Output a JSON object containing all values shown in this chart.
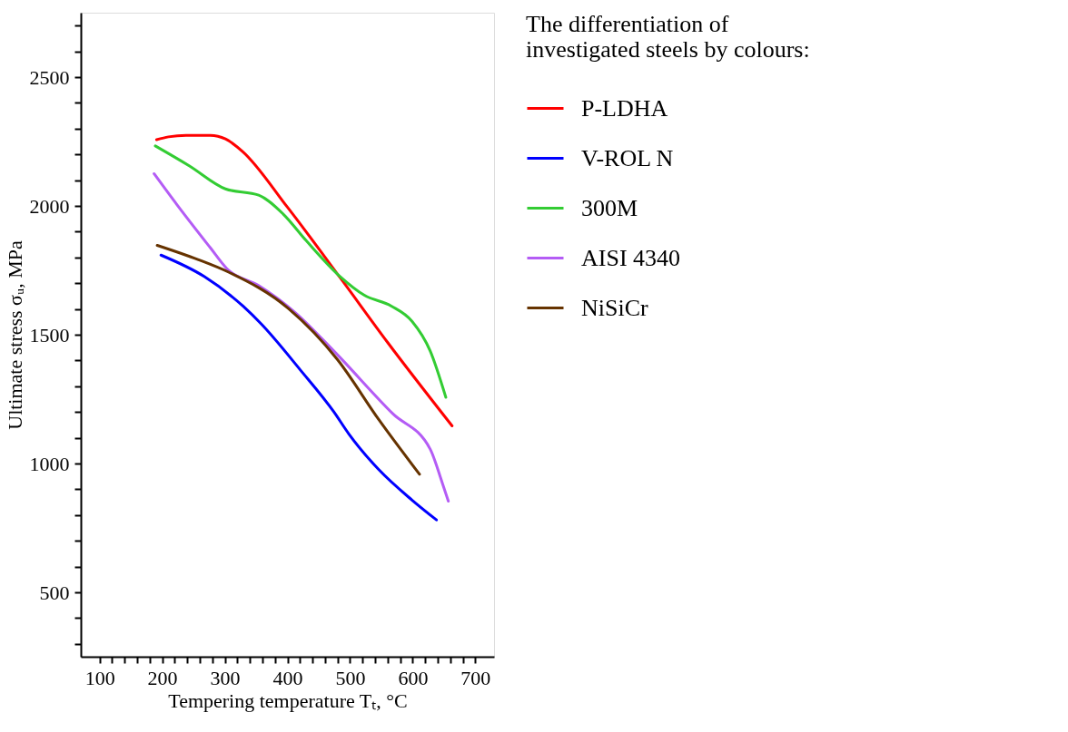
{
  "chart_data": {
    "type": "line",
    "xlabel": "Tempering temperature Tₜ, °C",
    "ylabel": "Ultimate stress σᵤ, MPa",
    "legend_title": "The differentiation of investigated steels by colours:",
    "legend": "right",
    "grid": false,
    "marker": "none",
    "line_style": "solid",
    "xlim": [
      70,
      730
    ],
    "ylim": [
      250,
      2750
    ],
    "xticks": [
      100,
      {
        "value": 120,
        "label": null
      },
      {
        "value": 140,
        "label": null
      },
      {
        "value": 160,
        "label": null
      },
      {
        "value": 180,
        "label": null
      },
      200,
      {
        "value": 220,
        "label": null
      },
      {
        "value": 240,
        "label": null
      },
      {
        "value": 260,
        "label": null
      },
      {
        "value": 280,
        "label": null
      },
      300,
      {
        "value": 320,
        "label": null
      },
      {
        "value": 340,
        "label": null
      },
      {
        "value": 360,
        "label": null
      },
      {
        "value": 380,
        "label": null
      },
      400,
      {
        "value": 420,
        "label": null
      },
      {
        "value": 440,
        "label": null
      },
      {
        "value": 460,
        "label": null
      },
      {
        "value": 480,
        "label": null
      },
      500,
      {
        "value": 520,
        "label": null
      },
      {
        "value": 540,
        "label": null
      },
      {
        "value": 560,
        "label": null
      },
      {
        "value": 580,
        "label": null
      },
      600,
      {
        "value": 620,
        "label": null
      },
      {
        "value": 640,
        "label": null
      },
      {
        "value": 660,
        "label": null
      },
      {
        "value": 680,
        "label": null
      },
      700
    ],
    "yticks": [
      {
        "value": 300,
        "label": null
      },
      {
        "value": 400,
        "label": null
      },
      500,
      {
        "value": 600,
        "label": null
      },
      {
        "value": 700,
        "label": null
      },
      {
        "value": 800,
        "label": null
      },
      {
        "value": 900,
        "label": null
      },
      1000,
      {
        "value": 1100,
        "label": null
      },
      {
        "value": 1200,
        "label": null
      },
      {
        "value": 1300,
        "label": null
      },
      {
        "value": 1400,
        "label": null
      },
      1500,
      {
        "value": 1600,
        "label": null
      },
      {
        "value": 1700,
        "label": null
      },
      {
        "value": 1800,
        "label": null
      },
      {
        "value": 1900,
        "label": null
      },
      2000,
      {
        "value": 2100,
        "label": null
      },
      {
        "value": 2200,
        "label": null
      },
      {
        "value": 2300,
        "label": null
      },
      {
        "value": 2400,
        "label": null
      },
      2500,
      {
        "value": 2600,
        "label": null
      },
      {
        "value": 2700,
        "label": null
      }
    ],
    "series": [
      {
        "name": "P-LDHA",
        "color": "#ff0000",
        "x": [
          191,
          210,
          238,
          277,
          301,
          328,
          400,
          484,
          560,
          663
        ],
        "values": [
          2257,
          2268,
          2274,
          2274,
          2260,
          2212,
          1995,
          1722,
          1470,
          1146
        ]
      },
      {
        "name": "V-ROL  N",
        "color": "#0000ff",
        "x": [
          198,
          267,
          329,
          358,
          420,
          474,
          498,
          546,
          599,
          638
        ],
        "values": [
          1809,
          1726,
          1611,
          1542,
          1365,
          1201,
          1115,
          976,
          858,
          781
        ]
      },
      {
        "name": "300M",
        "color": "#33cc33",
        "x": [
          189,
          243,
          301,
          354,
          393,
          430,
          484,
          523,
          566,
          599,
          628,
          653
        ],
        "values": [
          2233,
          2156,
          2066,
          2042,
          1969,
          1865,
          1726,
          1653,
          1611,
          1552,
          1437,
          1257
        ]
      },
      {
        "name": "AISI 4340",
        "color": "#b45cf5",
        "x": [
          187,
          224,
          277,
          303,
          354,
          412,
          474,
          568,
          628,
          647,
          657
        ],
        "values": [
          2125,
          2003,
          1837,
          1757,
          1691,
          1587,
          1437,
          1194,
          1056,
          927,
          854
        ]
      },
      {
        "name": "NiSiCr",
        "color": "#663300",
        "x": [
          192,
          257,
          306,
          402,
          480,
          546,
          611
        ],
        "values": [
          1847,
          1792,
          1743,
          1601,
          1403,
          1170,
          958
        ]
      }
    ]
  }
}
